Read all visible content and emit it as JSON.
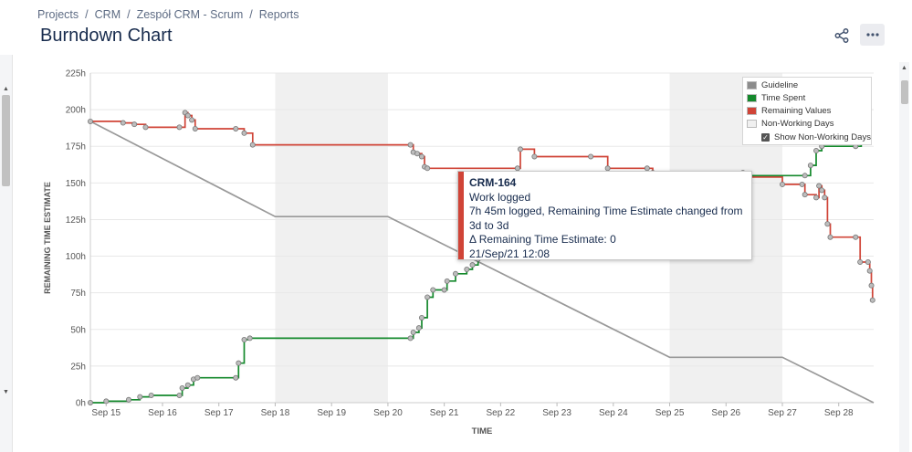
{
  "breadcrumb": [
    "Projects",
    "CRM",
    "Zespół CRM - Scrum",
    "Reports"
  ],
  "page": {
    "title": "Burndown Chart"
  },
  "toolbar": {
    "share_icon": "share-icon",
    "more_icon": "more-icon"
  },
  "legend": {
    "items": [
      {
        "label": "Guideline",
        "color": "#8c8c8c"
      },
      {
        "label": "Time Spent",
        "color": "#14892c"
      },
      {
        "label": "Remaining Values",
        "color": "#d04437"
      },
      {
        "label": "Non-Working Days",
        "color": "#f0f0f0"
      }
    ],
    "toggle": {
      "label": "Show Non-Working Days",
      "checked": true
    }
  },
  "tooltip": {
    "key": "CRM-164",
    "action": "Work logged",
    "detail": "7h 45m logged, Remaining Time Estimate changed from 3d to 3d",
    "delta": "Δ Remaining Time Estimate: 0",
    "date": "21/Sep/21 12:08"
  },
  "chart_data": {
    "type": "line",
    "xlabel": "TIME",
    "ylabel": "REMAINING TIME ESTIMATE",
    "x_ticks": [
      "Sep 15",
      "Sep 16",
      "Sep 17",
      "Sep 18",
      "Sep 19",
      "Sep 20",
      "Sep 21",
      "Sep 22",
      "Sep 23",
      "Sep 24",
      "Sep 25",
      "Sep 26",
      "Sep 27",
      "Sep 28"
    ],
    "y_ticks": [
      "0h",
      "25h",
      "50h",
      "75h",
      "100h",
      "125h",
      "150h",
      "175h",
      "200h",
      "225h"
    ],
    "ylim": [
      0,
      225
    ],
    "xlim": [
      14.72,
      28.62
    ],
    "grid": true,
    "legend_position": "top-right",
    "non_working_days": [
      [
        18,
        20
      ],
      [
        25,
        27
      ]
    ],
    "series": [
      {
        "name": "Guideline",
        "color": "#999999",
        "points": [
          [
            14.72,
            192
          ],
          [
            18.0,
            127
          ],
          [
            20.0,
            127
          ],
          [
            25.0,
            31
          ],
          [
            27.0,
            31
          ],
          [
            28.62,
            0
          ]
        ]
      },
      {
        "name": "Remaining Values",
        "color": "#d04437",
        "step": true,
        "points": [
          [
            14.72,
            192
          ],
          [
            15.3,
            191
          ],
          [
            15.5,
            190
          ],
          [
            15.7,
            188
          ],
          [
            16.3,
            188
          ],
          [
            16.4,
            198
          ],
          [
            16.45,
            196
          ],
          [
            16.52,
            193
          ],
          [
            16.58,
            187
          ],
          [
            17.3,
            187
          ],
          [
            17.45,
            184
          ],
          [
            17.6,
            176
          ],
          [
            20.4,
            176
          ],
          [
            20.45,
            171
          ],
          [
            20.52,
            170
          ],
          [
            20.6,
            168
          ],
          [
            20.65,
            161
          ],
          [
            20.7,
            160
          ],
          [
            22.3,
            160
          ],
          [
            22.35,
            173
          ],
          [
            22.6,
            168
          ],
          [
            23.6,
            168
          ],
          [
            23.9,
            160
          ],
          [
            24.6,
            160
          ],
          [
            24.7,
            157
          ],
          [
            26.3,
            157
          ],
          [
            26.35,
            154
          ],
          [
            27.0,
            149
          ],
          [
            27.35,
            149
          ],
          [
            27.4,
            142
          ],
          [
            27.6,
            140
          ],
          [
            27.65,
            148
          ],
          [
            27.7,
            145
          ],
          [
            27.75,
            140
          ],
          [
            27.8,
            122
          ],
          [
            27.85,
            113
          ],
          [
            28.3,
            113
          ],
          [
            28.38,
            96
          ],
          [
            28.52,
            96
          ],
          [
            28.55,
            90
          ],
          [
            28.58,
            80
          ],
          [
            28.6,
            70
          ]
        ]
      },
      {
        "name": "Time Spent",
        "color": "#14892c",
        "step": true,
        "points": [
          [
            14.72,
            0
          ],
          [
            15.0,
            1
          ],
          [
            15.4,
            2
          ],
          [
            15.6,
            4
          ],
          [
            15.8,
            5
          ],
          [
            16.3,
            5
          ],
          [
            16.35,
            10
          ],
          [
            16.45,
            12
          ],
          [
            16.55,
            16
          ],
          [
            16.62,
            17
          ],
          [
            17.3,
            17
          ],
          [
            17.35,
            27
          ],
          [
            17.45,
            43
          ],
          [
            17.55,
            44
          ],
          [
            20.4,
            44
          ],
          [
            20.45,
            48
          ],
          [
            20.55,
            51
          ],
          [
            20.6,
            58
          ],
          [
            20.7,
            72
          ],
          [
            20.8,
            77
          ],
          [
            21.0,
            77
          ],
          [
            21.05,
            83
          ],
          [
            21.2,
            88
          ],
          [
            21.4,
            91
          ],
          [
            21.5,
            94
          ],
          [
            21.6,
            98
          ],
          [
            21.7,
            100
          ],
          [
            25.8,
            100
          ],
          [
            25.9,
            155
          ],
          [
            27.4,
            155
          ],
          [
            27.5,
            162
          ],
          [
            27.6,
            172
          ],
          [
            27.7,
            175
          ],
          [
            28.3,
            175
          ],
          [
            28.4,
            190
          ]
        ]
      }
    ]
  }
}
